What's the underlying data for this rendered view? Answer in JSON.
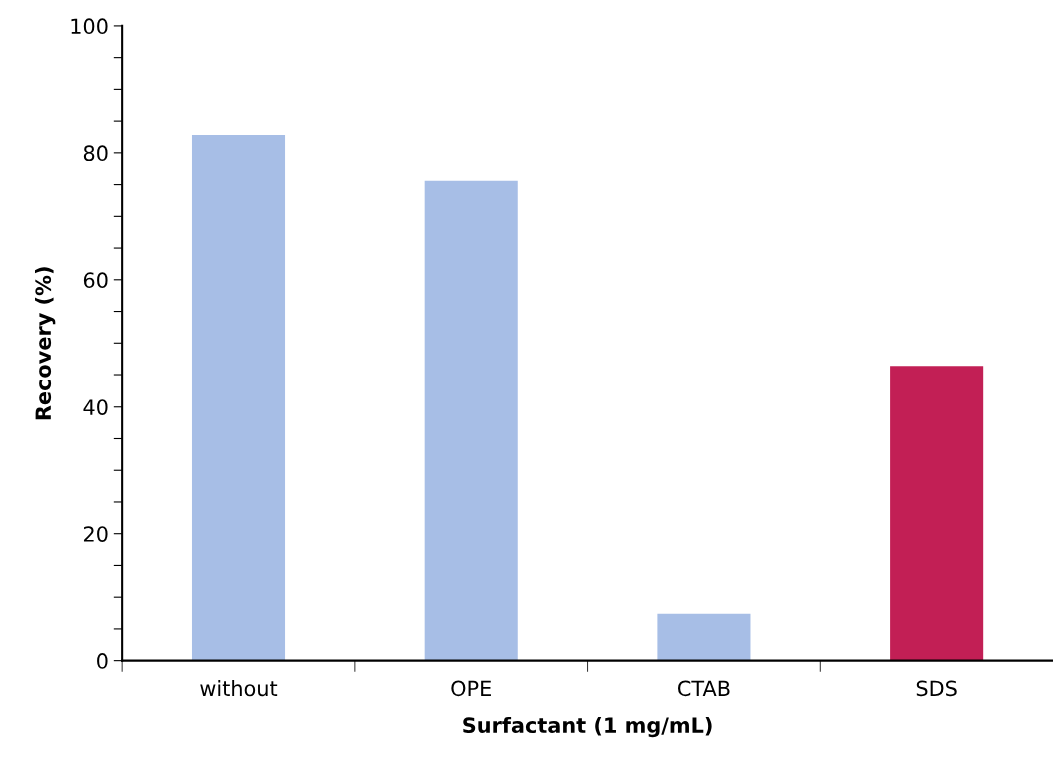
{
  "chart_data": {
    "type": "bar",
    "xlabel": "Surfactant (1 mg/mL)",
    "ylabel": "Recovery (%)",
    "categories": [
      "without",
      "OPE",
      "CTAB",
      "SDS"
    ],
    "values": [
      82.8,
      75.6,
      7.4,
      46.4
    ],
    "colors": [
      "#a7bee6",
      "#a7bee6",
      "#a7bee6",
      "#c21f55"
    ],
    "ylim": [
      0,
      100
    ],
    "yticks": [
      0,
      {
        "value": 5,
        "label": null
      },
      {
        "value": 10,
        "label": null
      },
      {
        "value": 15,
        "label": null
      },
      20,
      {
        "value": 25,
        "label": null
      },
      {
        "value": 30,
        "label": null
      },
      {
        "value": 35,
        "label": null
      },
      40,
      {
        "value": 45,
        "label": null
      },
      {
        "value": 50,
        "label": null
      },
      {
        "value": 55,
        "label": null
      },
      60,
      {
        "value": 65,
        "label": null
      },
      {
        "value": 70,
        "label": null
      },
      {
        "value": 75,
        "label": null
      },
      80,
      {
        "value": 85,
        "label": null
      },
      {
        "value": 90,
        "label": null
      },
      {
        "value": 95,
        "label": null
      },
      100
    ],
    "grid": false,
    "legend": false
  }
}
